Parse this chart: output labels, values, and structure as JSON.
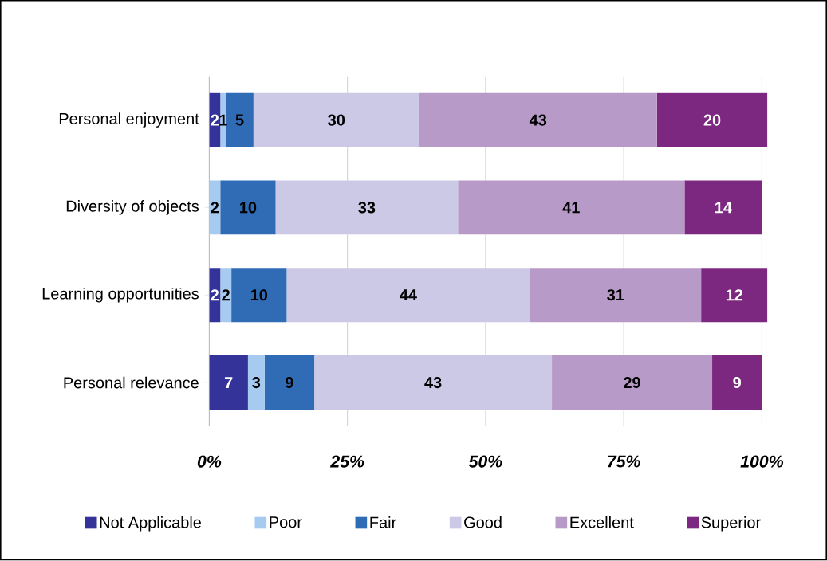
{
  "chart_data": {
    "type": "bar",
    "orientation": "horizontal",
    "stacked": true,
    "data_labels": true,
    "grid": "x",
    "legend": "bottom",
    "categories": [
      "Personal enjoyment",
      "Diversity of objects",
      "Learning opportunities",
      "Personal relevance"
    ],
    "series": [
      {
        "name": "Not Applicable",
        "color": "#333399",
        "values": [
          2,
          null,
          2,
          7
        ]
      },
      {
        "name": "Poor",
        "color": "#a6caf0",
        "values": [
          1,
          2,
          2,
          3
        ]
      },
      {
        "name": "Fair",
        "color": "#2f6cb5",
        "values": [
          5,
          10,
          10,
          9
        ]
      },
      {
        "name": "Good",
        "color": "#ccc9e6",
        "values": [
          30,
          33,
          44,
          43
        ]
      },
      {
        "name": "Excellent",
        "color": "#b89ac8",
        "values": [
          43,
          41,
          31,
          29
        ]
      },
      {
        "name": "Superior",
        "color": "#7c2880",
        "values": [
          20,
          14,
          12,
          9
        ]
      }
    ],
    "xlim": [
      0,
      101
    ],
    "xticks": [
      {
        "value": 0,
        "label": "0%"
      },
      {
        "value": 25,
        "label": "25%"
      },
      {
        "value": 50,
        "label": "50%"
      },
      {
        "value": 75,
        "label": "75%"
      },
      {
        "value": 100,
        "label": "100%"
      }
    ]
  }
}
